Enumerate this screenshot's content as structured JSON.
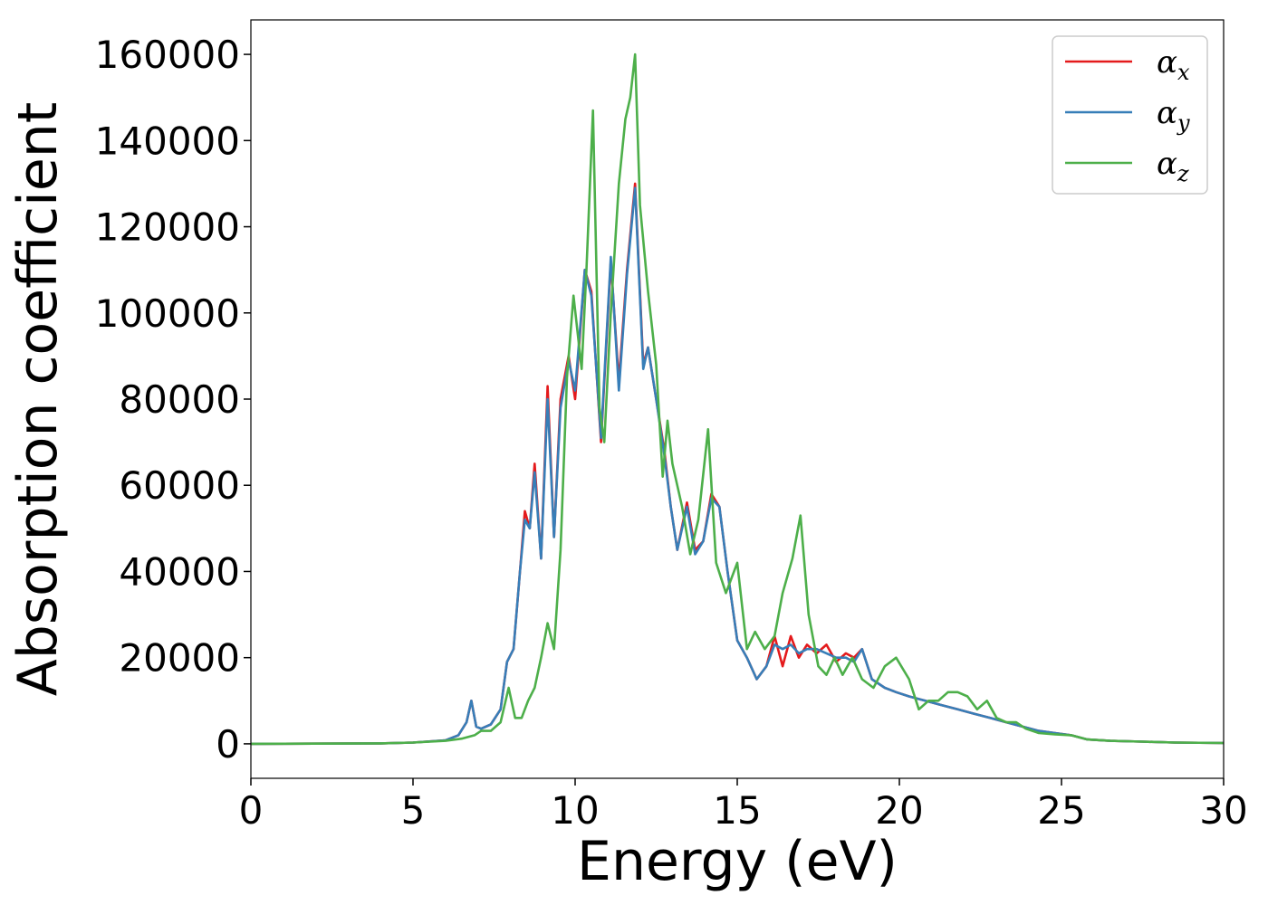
{
  "chart_data": {
    "type": "line",
    "xlabel": "Energy (eV)",
    "ylabel": "Absorption coefficient",
    "xlim": [
      0,
      30
    ],
    "ylim": [
      -8000,
      168000
    ],
    "xticks": [
      0,
      5,
      10,
      15,
      20,
      25,
      30
    ],
    "yticks": [
      0,
      20000,
      40000,
      60000,
      80000,
      100000,
      120000,
      140000,
      160000
    ],
    "grid": false,
    "legend_position": "top-right",
    "series": [
      {
        "name": "α",
        "subscript": "x",
        "color": "#e41a1c",
        "x": [
          0,
          4,
          5,
          6,
          6.4,
          6.65,
          6.8,
          6.95,
          7.1,
          7.4,
          7.7,
          7.9,
          8.1,
          8.3,
          8.45,
          8.6,
          8.75,
          8.95,
          9.15,
          9.35,
          9.55,
          9.8,
          10.0,
          10.3,
          10.5,
          10.8,
          11.1,
          11.35,
          11.6,
          11.85,
          12.1,
          12.25,
          12.5,
          12.75,
          12.95,
          13.15,
          13.45,
          13.7,
          13.95,
          14.2,
          14.45,
          14.7,
          15.0,
          15.3,
          15.6,
          15.9,
          16.15,
          16.4,
          16.65,
          16.9,
          17.15,
          17.45,
          17.75,
          18.05,
          18.35,
          18.6,
          18.85,
          19.15,
          19.55,
          19.9,
          20.3,
          20.8,
          21.3,
          21.8,
          22.3,
          22.8,
          23.3,
          23.8,
          24.3,
          24.8,
          25.3,
          25.8,
          26.5,
          27.5,
          28.5,
          30
        ],
        "y": [
          0,
          100,
          300,
          800,
          2000,
          5000,
          10000,
          4000,
          3500,
          4500,
          8000,
          19000,
          22000,
          40000,
          54000,
          50000,
          65000,
          43000,
          83000,
          48000,
          80000,
          90000,
          80000,
          110000,
          105000,
          70000,
          112000,
          84000,
          110000,
          130000,
          88000,
          92000,
          80000,
          68000,
          55000,
          45000,
          56000,
          45000,
          47000,
          58000,
          55000,
          40000,
          24000,
          20000,
          15000,
          18000,
          25000,
          18000,
          25000,
          20000,
          23000,
          21000,
          23000,
          19000,
          21000,
          20000,
          22000,
          15000,
          13000,
          12000,
          11000,
          10000,
          9000,
          8000,
          7000,
          6000,
          5000,
          4000,
          3000,
          2500,
          2000,
          1000,
          700,
          500,
          300,
          200
        ]
      },
      {
        "name": "α",
        "subscript": "y",
        "color": "#377eb8",
        "x": [
          0,
          4,
          5,
          6,
          6.4,
          6.65,
          6.8,
          6.95,
          7.1,
          7.4,
          7.7,
          7.9,
          8.1,
          8.3,
          8.45,
          8.6,
          8.75,
          8.95,
          9.15,
          9.35,
          9.55,
          9.8,
          10.0,
          10.3,
          10.5,
          10.8,
          11.1,
          11.35,
          11.6,
          11.85,
          12.1,
          12.25,
          12.5,
          12.75,
          12.95,
          13.15,
          13.45,
          13.7,
          13.95,
          14.2,
          14.45,
          14.7,
          15.0,
          15.3,
          15.6,
          15.9,
          16.15,
          16.4,
          16.65,
          16.9,
          17.15,
          17.45,
          17.75,
          18.05,
          18.35,
          18.6,
          18.85,
          19.15,
          19.55,
          19.9,
          20.3,
          20.8,
          21.3,
          21.8,
          22.3,
          22.8,
          23.3,
          23.8,
          24.3,
          24.8,
          25.3,
          25.8,
          26.5,
          27.5,
          28.5,
          30
        ],
        "y": [
          0,
          100,
          300,
          800,
          2000,
          5000,
          10000,
          4000,
          3500,
          4500,
          8000,
          19000,
          22000,
          40000,
          52000,
          50000,
          63000,
          43000,
          80000,
          48000,
          78000,
          89000,
          82000,
          110000,
          104000,
          71000,
          113000,
          82000,
          109000,
          129000,
          87000,
          92000,
          80000,
          67000,
          55000,
          45000,
          55000,
          44000,
          47000,
          57000,
          55000,
          40000,
          24000,
          20000,
          15000,
          18000,
          23000,
          22000,
          23000,
          21000,
          22000,
          22000,
          21000,
          20000,
          20000,
          19000,
          22000,
          15000,
          13000,
          12000,
          11000,
          10000,
          9000,
          8000,
          7000,
          6000,
          5000,
          4000,
          3000,
          2500,
          2000,
          1000,
          700,
          500,
          300,
          200
        ]
      },
      {
        "name": "α",
        "subscript": "z",
        "color": "#4daf4a",
        "x": [
          0,
          4,
          5,
          6,
          6.5,
          6.9,
          7.1,
          7.4,
          7.7,
          7.95,
          8.15,
          8.35,
          8.55,
          8.75,
          8.95,
          9.15,
          9.35,
          9.55,
          9.75,
          9.95,
          10.2,
          10.35,
          10.55,
          10.75,
          10.9,
          11.1,
          11.35,
          11.55,
          11.7,
          11.85,
          12.0,
          12.25,
          12.5,
          12.7,
          12.85,
          13.0,
          13.3,
          13.55,
          13.8,
          14.1,
          14.35,
          14.65,
          15.0,
          15.3,
          15.55,
          15.85,
          16.15,
          16.4,
          16.7,
          16.95,
          17.2,
          17.5,
          17.75,
          18.0,
          18.25,
          18.55,
          18.85,
          19.2,
          19.55,
          19.9,
          20.3,
          20.6,
          20.9,
          21.2,
          21.5,
          21.8,
          22.1,
          22.4,
          22.7,
          23.0,
          23.3,
          23.6,
          23.9,
          24.3,
          24.8,
          25.3,
          25.8,
          26.5,
          27.5,
          28.5,
          30
        ],
        "y": [
          0,
          100,
          300,
          700,
          1200,
          2000,
          3000,
          3000,
          5000,
          13000,
          6000,
          6000,
          10000,
          13000,
          20000,
          28000,
          22000,
          45000,
          85000,
          104000,
          87000,
          110000,
          147000,
          78000,
          70000,
          100000,
          130000,
          145000,
          150000,
          160000,
          125000,
          105000,
          88000,
          62000,
          75000,
          65000,
          55000,
          44000,
          52000,
          73000,
          42000,
          35000,
          42000,
          22000,
          26000,
          22000,
          25000,
          35000,
          43000,
          53000,
          30000,
          18000,
          16000,
          20000,
          16000,
          20000,
          15000,
          13000,
          18000,
          20000,
          15000,
          8000,
          10000,
          10000,
          12000,
          12000,
          11000,
          8000,
          10000,
          6000,
          5000,
          5000,
          3500,
          2500,
          2200,
          2000,
          1000,
          700,
          500,
          300,
          200
        ]
      }
    ]
  }
}
